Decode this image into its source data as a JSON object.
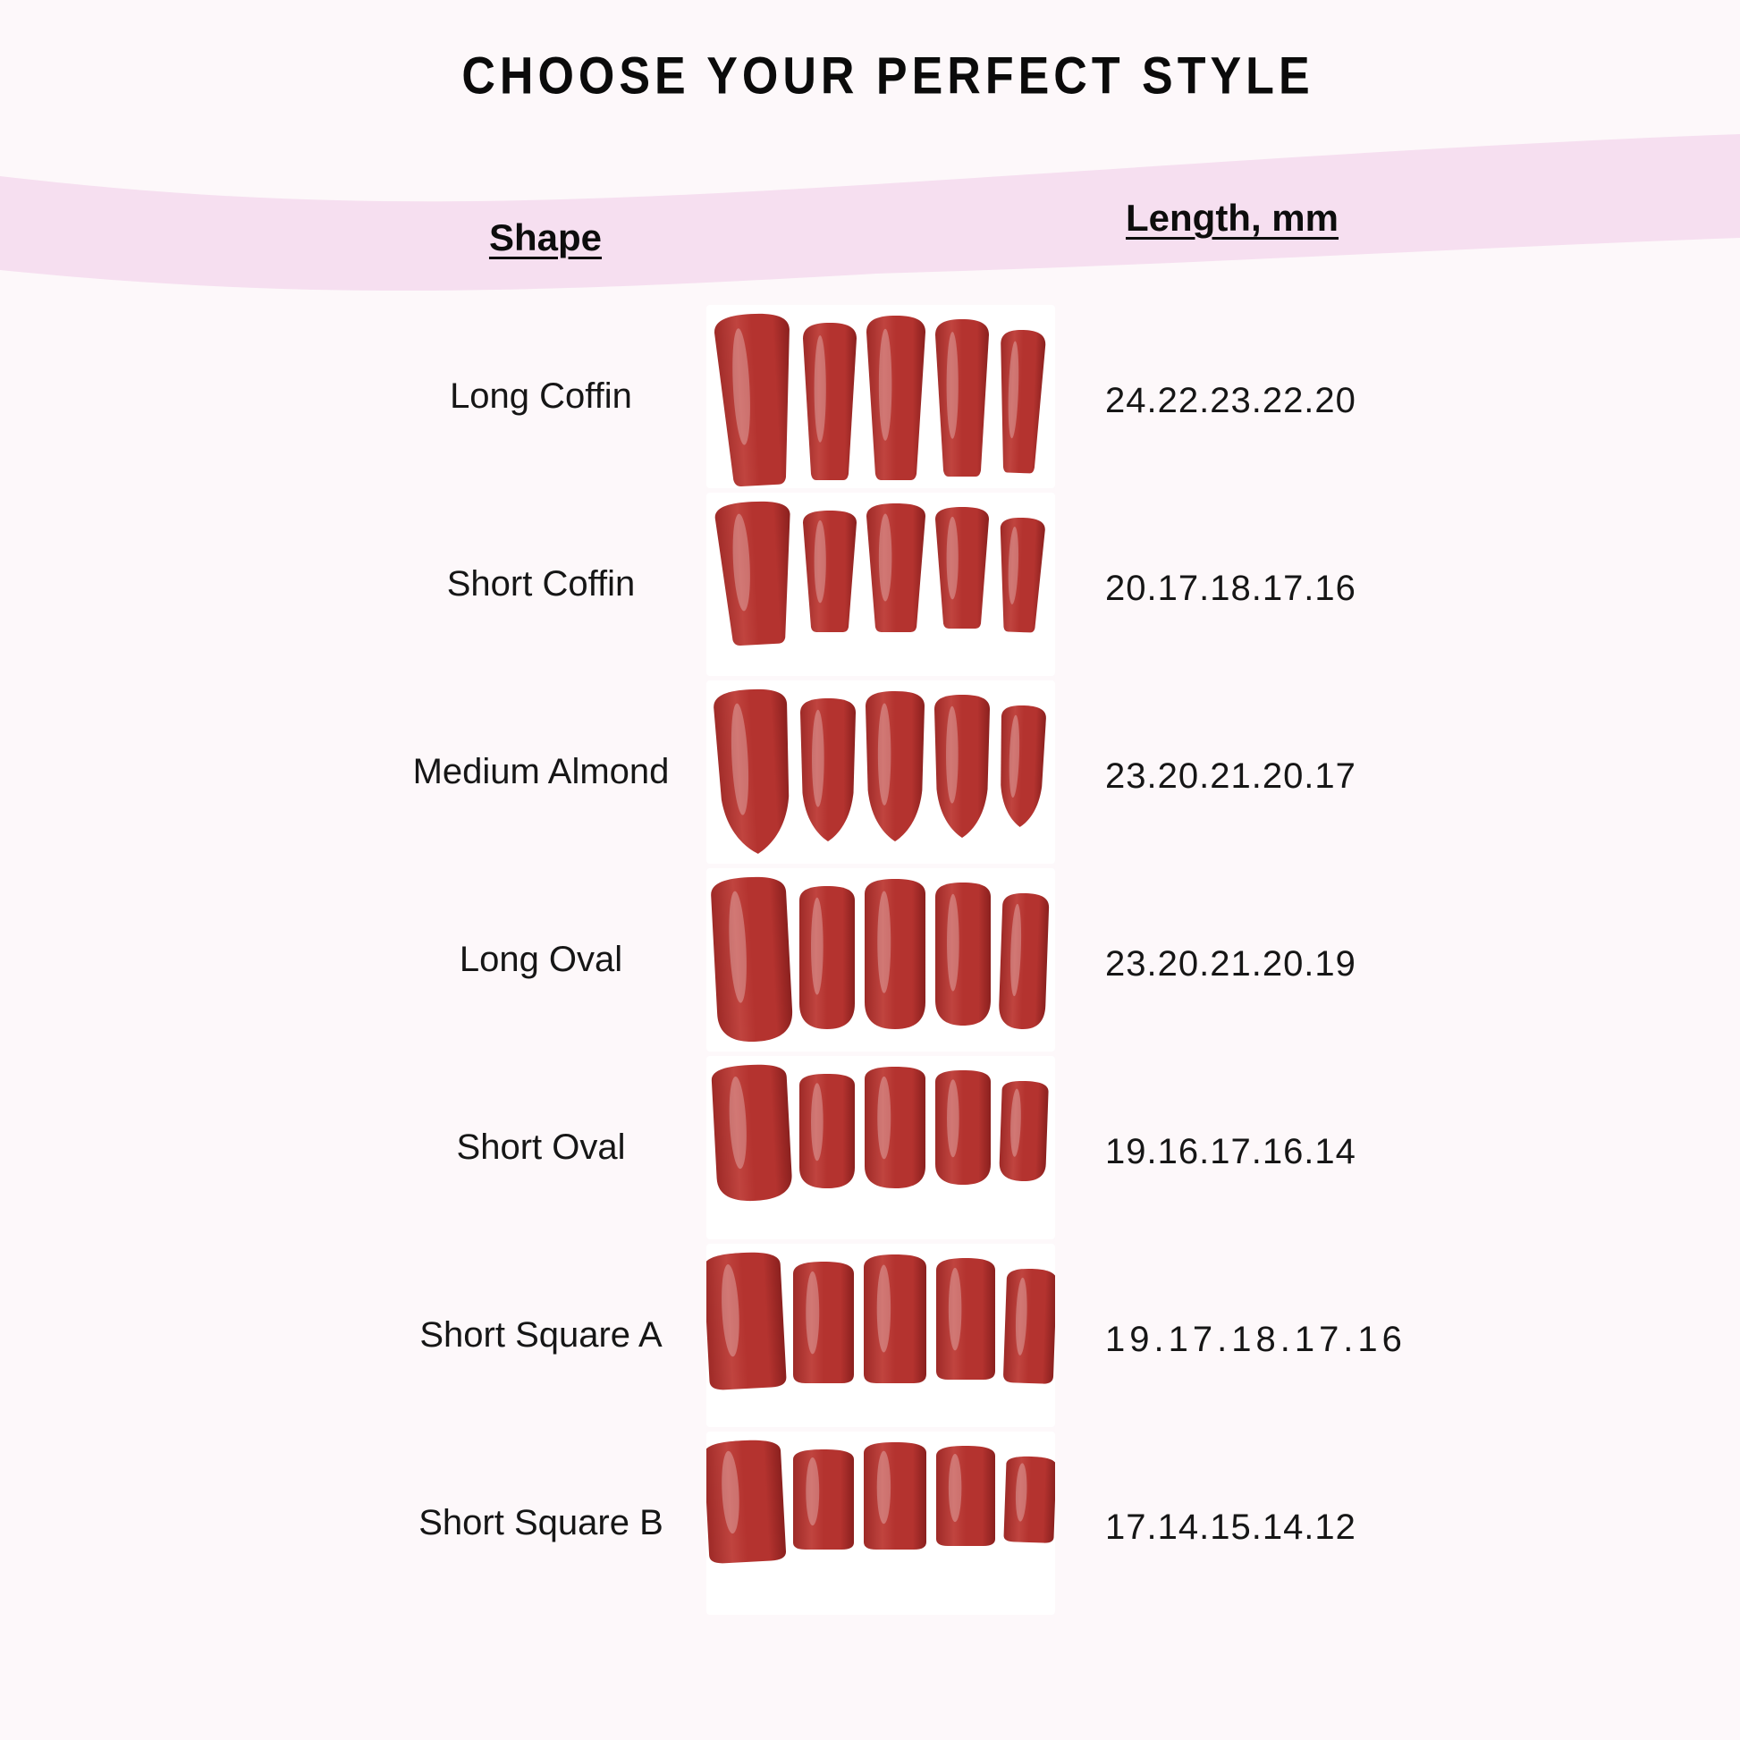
{
  "page": {
    "title": "CHOOSE YOUR PERFECT STYLE",
    "background_color": "#fdf8fa"
  },
  "banner": {
    "color": "#f6dff0",
    "shape_header": "Shape",
    "length_header": "Length, mm"
  },
  "nail_colors": {
    "base": "#b4332f",
    "light": "#c0443f",
    "dark": "#8a201e",
    "edge": "#9e2a27",
    "gloss": "#ffffff"
  },
  "rows": [
    {
      "label": "Long Coffin",
      "shape_type": "coffin",
      "lengths_label": "24.22.23.22.20",
      "lengths_mm": [
        24,
        22,
        23,
        22,
        20
      ]
    },
    {
      "label": "Short Coffin",
      "shape_type": "coffin",
      "lengths_label": "20.17.18.17.16",
      "lengths_mm": [
        20,
        17,
        18,
        17,
        16
      ]
    },
    {
      "label": "Medium Almond",
      "shape_type": "almond",
      "lengths_label": "23.20.21.20.17",
      "lengths_mm": [
        23,
        20,
        21,
        20,
        17
      ]
    },
    {
      "label": "Long Oval",
      "shape_type": "oval",
      "lengths_label": "23.20.21.20.19",
      "lengths_mm": [
        23,
        20,
        21,
        20,
        19
      ]
    },
    {
      "label": "Short Oval",
      "shape_type": "oval",
      "lengths_label": "19.16.17.16.14",
      "lengths_mm": [
        19,
        16,
        17,
        16,
        14
      ]
    },
    {
      "label": "Short Square A",
      "shape_type": "square",
      "lengths_label": "19.17.18.17.16",
      "lengths_mm": [
        19,
        17,
        18,
        17,
        16
      ]
    },
    {
      "label": "Short Square B",
      "shape_type": "square",
      "lengths_label": "17.14.15.14.12",
      "lengths_mm": [
        17,
        14,
        15,
        14,
        12
      ]
    }
  ]
}
